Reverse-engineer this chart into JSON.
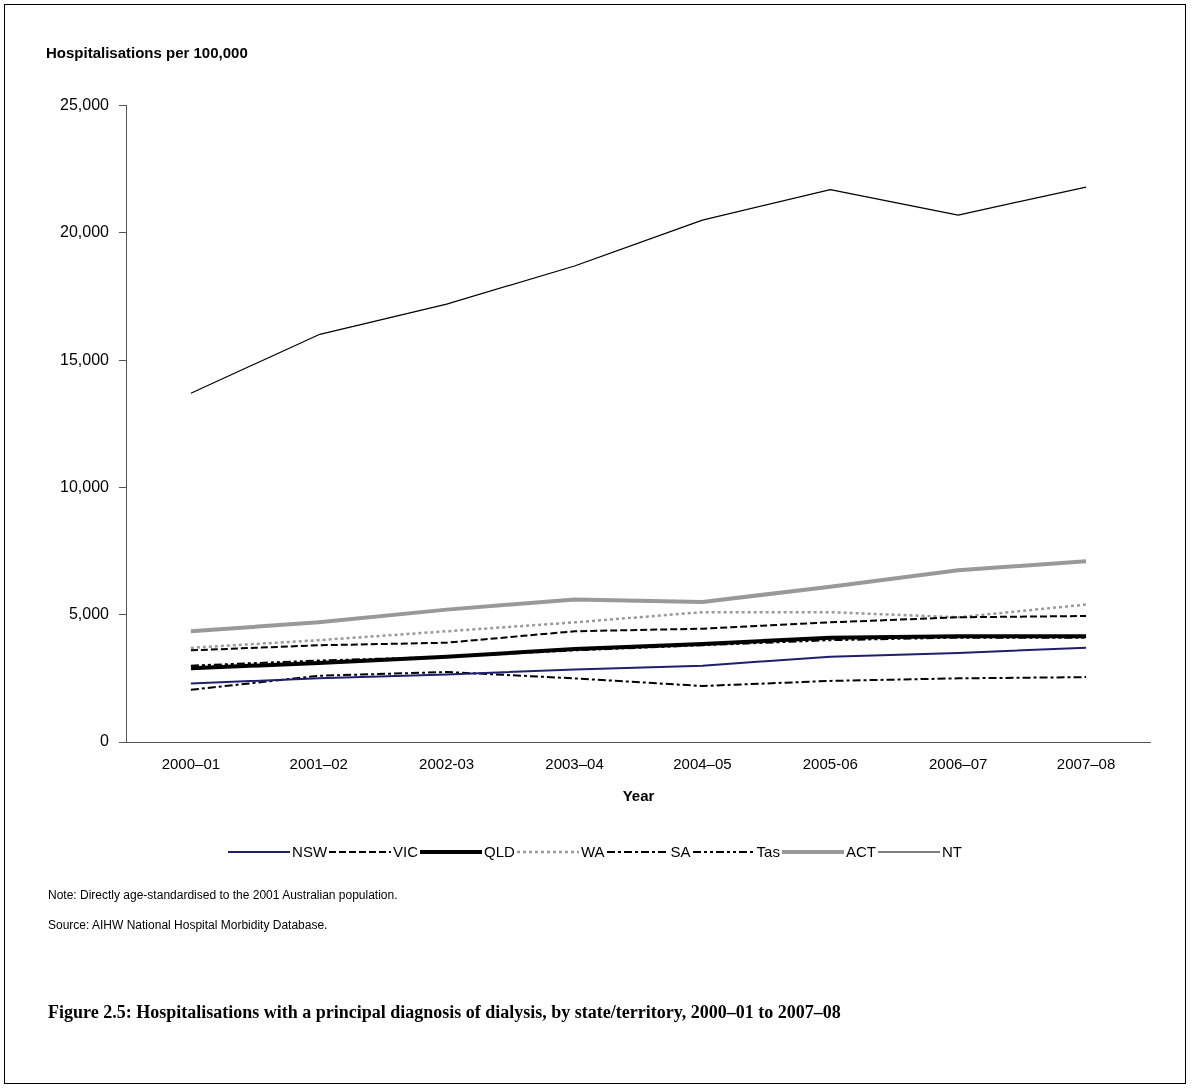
{
  "chart_data": {
    "type": "line",
    "title": "Figure 2.5: Hospitalisations with a principal diagnosis of dialysis, by state/territory, 2000–01 to 2007–08",
    "ylabel": "Hospitalisations per 100,000",
    "xlabel": "Year",
    "categories": [
      "2000–01",
      "2001–02",
      "2002-03",
      "2003–04",
      "2004–05",
      "2005-06",
      "2006–07",
      "2007–08"
    ],
    "ylim": [
      0,
      25000
    ],
    "yticks": [
      {
        "value": 0,
        "label": "0"
      },
      {
        "value": 5000,
        "label": "5,000"
      },
      {
        "value": 10000,
        "label": "10,000"
      },
      {
        "value": 15000,
        "label": "15,000"
      },
      {
        "value": 20000,
        "label": "20,000"
      },
      {
        "value": 25000,
        "label": "25,000"
      }
    ],
    "grid": false,
    "legend": "bottom",
    "marker": "none",
    "series": [
      {
        "name": "NSW",
        "color": "#1f1f6e",
        "line_style": "solid",
        "values": [
          2300,
          2500,
          2650,
          2850,
          3000,
          3350,
          3500,
          3700
        ]
      },
      {
        "name": "VIC",
        "color": "#000000",
        "line_style": "dashed",
        "values": [
          3600,
          3800,
          3900,
          4350,
          4450,
          4700,
          4900,
          4950
        ]
      },
      {
        "name": "QLD",
        "color": "#000000",
        "line_style": "solid",
        "values": [
          2900,
          3100,
          3350,
          3650,
          3850,
          4100,
          4150,
          4150
        ]
      },
      {
        "name": "WA",
        "color": "#999999",
        "line_style": "dotted",
        "values": [
          3700,
          4000,
          4350,
          4700,
          5100,
          5100,
          4900,
          5400
        ]
      },
      {
        "name": "SA",
        "color": "#000000",
        "line_style": "dashdot",
        "values": [
          2050,
          2600,
          2750,
          2500,
          2200,
          2400,
          2500,
          2550
        ]
      },
      {
        "name": "Tas",
        "color": "#000000",
        "line_style": "dashdotdot",
        "values": [
          3000,
          3200,
          3350,
          3600,
          3800,
          4000,
          4100,
          4100
        ]
      },
      {
        "name": "ACT",
        "color": "#999999",
        "line_style": "solid",
        "values": [
          4350,
          4700,
          5200,
          5600,
          5500,
          6100,
          6750,
          7100
        ]
      },
      {
        "name": "NT",
        "color": "#000000",
        "line_style": "solid",
        "values": [
          13700,
          16000,
          17200,
          18700,
          20500,
          21700,
          20700,
          21800
        ]
      }
    ],
    "annotations": [
      "Note: Directly age-standardised to the 2001 Australian population.",
      "Source: AIHW National Hospital Morbidity Database."
    ]
  }
}
